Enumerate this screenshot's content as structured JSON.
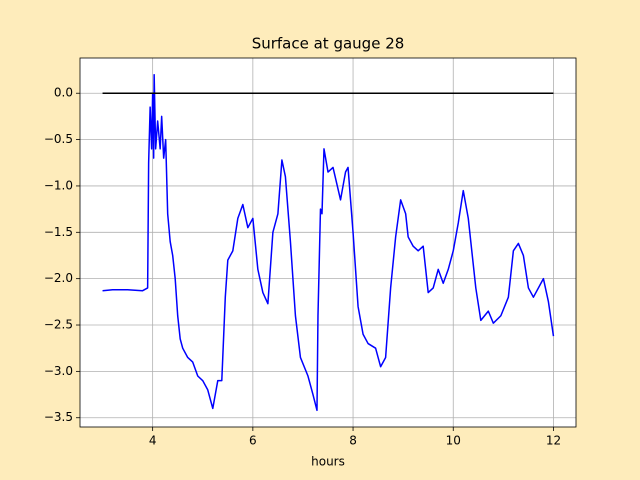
{
  "chart_data": {
    "type": "line",
    "title": "Surface at gauge 28",
    "x_label": "hours",
    "xlim": [
      2.55,
      12.45
    ],
    "ylim": [
      -3.6,
      0.38
    ],
    "xticks": [
      4,
      6,
      8,
      10,
      12
    ],
    "yticks": [
      {
        "value": 0.0,
        "label": "0.0"
      },
      {
        "value": -0.5,
        "label": "−0.5"
      },
      {
        "value": -1.0,
        "label": "−1.0"
      },
      {
        "value": -1.5,
        "label": "−1.5"
      },
      {
        "value": -2.0,
        "label": "−2.0"
      },
      {
        "value": -2.5,
        "label": "−2.5"
      },
      {
        "value": -3.0,
        "label": "−3.0"
      },
      {
        "value": -3.5,
        "label": "−3.5"
      }
    ],
    "grid": true,
    "series": [
      {
        "color": "#0000ff",
        "x": [
          3.0,
          3.2,
          3.5,
          3.8,
          3.9,
          3.92,
          3.95,
          3.98,
          4.0,
          4.02,
          4.03,
          4.06,
          4.1,
          4.15,
          4.18,
          4.22,
          4.26,
          4.3,
          4.35,
          4.4,
          4.45,
          4.5,
          4.55,
          4.6,
          4.7,
          4.8,
          4.9,
          5.0,
          5.1,
          5.2,
          5.3,
          5.38,
          5.45,
          5.5,
          5.6,
          5.7,
          5.8,
          5.9,
          6.0,
          6.1,
          6.2,
          6.3,
          6.4,
          6.5,
          6.58,
          6.65,
          6.75,
          6.85,
          6.95,
          7.1,
          7.2,
          7.28,
          7.3,
          7.35,
          7.38,
          7.42,
          7.5,
          7.6,
          7.75,
          7.85,
          7.9,
          8.0,
          8.1,
          8.2,
          8.3,
          8.45,
          8.55,
          8.65,
          8.75,
          8.85,
          8.95,
          9.05,
          9.1,
          9.2,
          9.3,
          9.4,
          9.5,
          9.6,
          9.7,
          9.8,
          9.9,
          10.0,
          10.1,
          10.2,
          10.3,
          10.45,
          10.55,
          10.7,
          10.8,
          10.95,
          11.1,
          11.2,
          11.3,
          11.4,
          11.5,
          11.6,
          11.8,
          11.9,
          12.0
        ],
        "values": [
          -2.13,
          -2.12,
          -2.12,
          -2.13,
          -2.1,
          -0.75,
          -0.15,
          -0.6,
          0.0,
          -0.7,
          0.2,
          -0.6,
          -0.3,
          -0.6,
          -0.25,
          -0.7,
          -0.5,
          -1.3,
          -1.6,
          -1.75,
          -2.0,
          -2.4,
          -2.65,
          -2.75,
          -2.85,
          -2.9,
          -3.05,
          -3.1,
          -3.2,
          -3.4,
          -3.1,
          -3.1,
          -2.2,
          -1.8,
          -1.7,
          -1.35,
          -1.2,
          -1.45,
          -1.35,
          -1.9,
          -2.15,
          -2.27,
          -1.5,
          -1.3,
          -0.72,
          -0.9,
          -1.6,
          -2.4,
          -2.85,
          -3.05,
          -3.25,
          -3.42,
          -2.4,
          -1.25,
          -1.3,
          -0.6,
          -0.85,
          -0.8,
          -1.15,
          -0.85,
          -0.8,
          -1.5,
          -2.3,
          -2.6,
          -2.7,
          -2.75,
          -2.95,
          -2.85,
          -2.1,
          -1.55,
          -1.15,
          -1.3,
          -1.55,
          -1.65,
          -1.7,
          -1.65,
          -2.15,
          -2.1,
          -1.9,
          -2.05,
          -1.9,
          -1.7,
          -1.4,
          -1.05,
          -1.35,
          -2.1,
          -2.45,
          -2.35,
          -2.48,
          -2.4,
          -2.2,
          -1.7,
          -1.62,
          -1.75,
          -2.1,
          -2.2,
          -2.0,
          -2.25,
          -2.62
        ]
      },
      {
        "color": "#000000",
        "x": [
          3,
          12
        ],
        "values": [
          0,
          0
        ]
      }
    ]
  }
}
